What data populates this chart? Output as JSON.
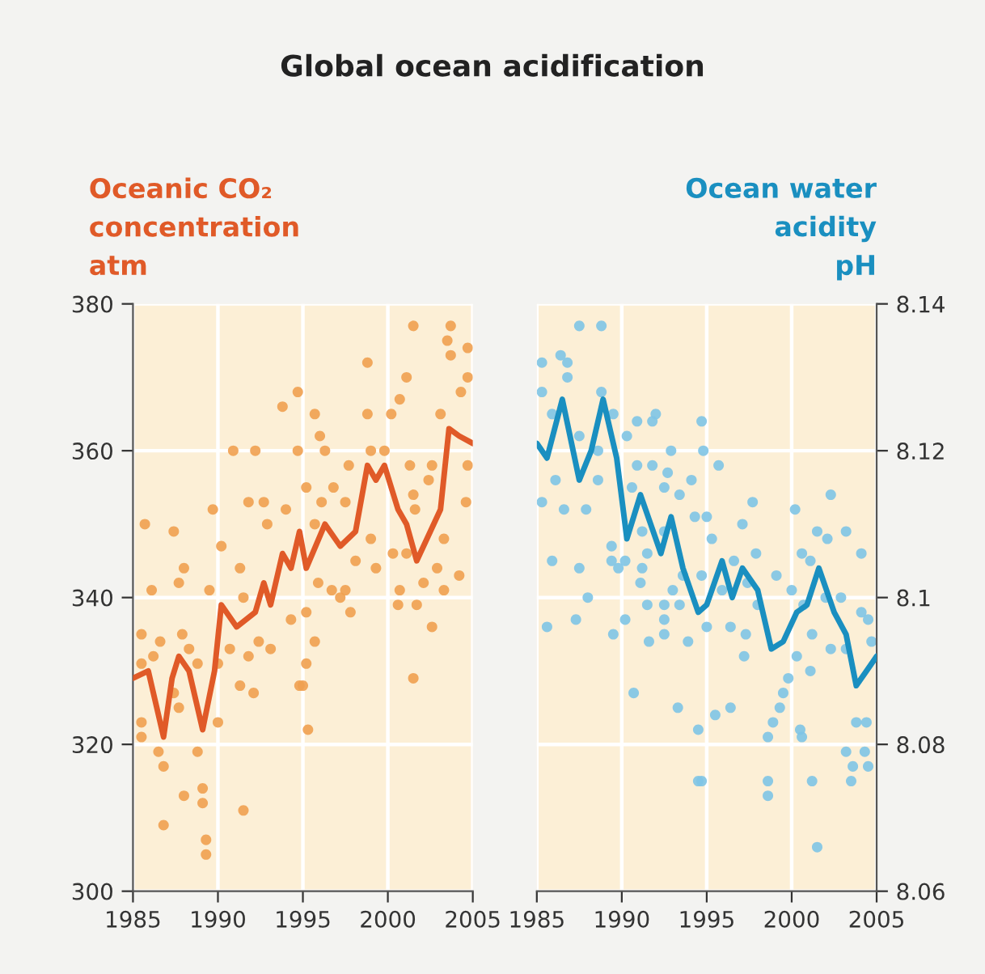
{
  "chart_data": [
    {
      "type": "scatter",
      "title": "Global ocean acidification",
      "ylabel": "Oceanic CO₂\nconcentration\natm",
      "xlim": [
        1985,
        2005
      ],
      "xticks": [
        1985,
        1990,
        1995,
        2000,
        2005
      ],
      "ylim": [
        300,
        380
      ],
      "yticks": [
        300,
        320,
        340,
        360,
        380
      ],
      "grid": true,
      "series": [
        {
          "type": "scatter",
          "marker": "circle",
          "color": "#f0a050",
          "x": [
            1994.7,
            1993.8,
            1990.9,
            1992.2,
            1994.7,
            1989.7,
            1985.7,
            1987.4,
            1991.8,
            1992.7,
            1992.9,
            1994.0,
            1990.2,
            1988.0,
            1991.3,
            1987.7,
            1986.1,
            1989.5,
            1991.5,
            1994.3,
            1985.5,
            1986.6,
            1987.9,
            1988.3,
            1990.7,
            1992.4,
            1993.1,
            1985.5,
            1986.2,
            1988.8,
            1990.0,
            1991.8,
            1987.4,
            1987.7,
            1991.3,
            1992.1,
            1990.0,
            1985.5,
            1985.5,
            1988.8,
            1986.5,
            1986.8,
            1989.1,
            1989.1,
            1988.0,
            1991.5,
            1986.8,
            1989.3,
            1989.3,
            1994.8,
            2001.5,
            2003.7,
            2003.5,
            2004.7,
            2003.7,
            1998.8,
            2001.1,
            2004.7,
            2000.7,
            2004.3,
            1995.7,
            1998.8,
            2000.2,
            2003.1,
            1996.0,
            1996.3,
            1999.0,
            1999.8,
            2001.3,
            2004.7,
            1997.7,
            2002.6,
            1995.2,
            1996.8,
            2001.5,
            2002.4,
            1996.1,
            1997.5,
            2004.6,
            2001.6,
            1995.7,
            1999.0,
            2003.3,
            2000.3,
            2001.1,
            1998.1,
            1999.3,
            2002.9,
            2004.2,
            1995.9,
            1996.7,
            2002.1,
            1997.5,
            2000.7,
            2003.3,
            1997.2,
            1995.2,
            2000.6,
            2001.7,
            1997.8,
            2002.6,
            1995.7,
            1995.2,
            1995.0,
            2001.5,
            1995.3
          ],
          "values": [
            368,
            366,
            360,
            360,
            360,
            352,
            350,
            349,
            353,
            353,
            350,
            352,
            347,
            344,
            344,
            342,
            341,
            341,
            340,
            337,
            335,
            334,
            335,
            333,
            333,
            334,
            333,
            331,
            332,
            331,
            331,
            332,
            327,
            325,
            328,
            327,
            323,
            323,
            321,
            319,
            319,
            317,
            314,
            312,
            313,
            311,
            309,
            307,
            305,
            328,
            377,
            377,
            375,
            374,
            373,
            372,
            370,
            370,
            367,
            368,
            365,
            365,
            365,
            365,
            362,
            360,
            360,
            360,
            358,
            358,
            358,
            358,
            355,
            355,
            354,
            356,
            353,
            353,
            353,
            352,
            350,
            348,
            348,
            346,
            346,
            345,
            344,
            344,
            343,
            342,
            341,
            342,
            341,
            341,
            341,
            340,
            338,
            339,
            339,
            338,
            336,
            334,
            331,
            328,
            329,
            322
          ]
        },
        {
          "type": "line",
          "color": "#e05a28",
          "x": [
            1985.0,
            1985.9,
            1986.8,
            1987.3,
            1987.7,
            1988.3,
            1989.1,
            1989.8,
            1990.2,
            1991.1,
            1992.2,
            1992.7,
            1993.1,
            1993.8,
            1994.3,
            1994.8,
            1995.2,
            1996.3,
            1997.2,
            1998.1,
            1998.8,
            1999.3,
            1999.8,
            2000.6,
            2001.1,
            2001.7,
            2002.5,
            2003.1,
            2003.6,
            2004.2,
            2005.0
          ],
          "values": [
            329,
            330,
            321,
            329,
            332,
            330,
            322,
            330,
            339,
            336,
            338,
            342,
            339,
            346,
            344,
            349,
            344,
            350,
            347,
            349,
            358,
            356,
            358,
            352,
            350,
            345,
            349,
            352,
            363,
            362,
            361
          ]
        }
      ]
    },
    {
      "type": "scatter",
      "ylabel": "Ocean water\nacidity\npH",
      "xlim": [
        1985,
        2005
      ],
      "xticks": [
        1985,
        1990,
        1995,
        2000,
        2005
      ],
      "ylim": [
        8.06,
        8.14
      ],
      "yticks": [
        8.06,
        8.08,
        8.1,
        8.12,
        8.14
      ],
      "grid": true,
      "series": [
        {
          "type": "scatter",
          "marker": "circle",
          "color": "#7ec4e6",
          "x": [
            1987.5,
            1988.8,
            1985.3,
            1986.4,
            1986.8,
            1986.8,
            1985.3,
            1988.8,
            1985.9,
            1989.5,
            1990.9,
            1992.0,
            1991.8,
            1990.3,
            1987.5,
            1992.9,
            1988.6,
            1990.9,
            1991.8,
            1992.7,
            1994.1,
            1986.1,
            1988.6,
            1990.6,
            1992.5,
            1985.3,
            1986.6,
            1987.9,
            1993.4,
            1991.2,
            1992.5,
            1994.3,
            1989.4,
            1985.9,
            1989.4,
            1990.2,
            1991.5,
            1987.5,
            1989.8,
            1991.2,
            1991.1,
            1993.6,
            1988.0,
            1993.0,
            1991.5,
            1992.5,
            1993.4,
            1987.3,
            1990.2,
            1985.6,
            1992.5,
            1989.5,
            1991.6,
            1992.5,
            1993.9,
            1990.7,
            1993.3,
            1994.5,
            1994.5,
            1994.7,
            1994.8,
            1995.7,
            1997.7,
            1997.1,
            2000.2,
            2002.3,
            2001.5,
            2002.1,
            2003.2,
            1995.0,
            1995.3,
            1996.6,
            1997.9,
            1999.1,
            2000.0,
            2000.6,
            2001.1,
            2004.1,
            1994.7,
            1995.9,
            1997.4,
            1998.0,
            2000.7,
            2002.0,
            2002.9,
            2004.1,
            2004.5,
            1995.0,
            1996.4,
            1997.3,
            2001.2,
            2002.3,
            2003.2,
            2004.7,
            1997.2,
            2000.3,
            2001.1,
            1999.8,
            1999.5,
            1996.4,
            1999.3,
            1995.5,
            1998.9,
            1998.6,
            2003.8,
            2004.4,
            2000.5,
            2000.6,
            2003.2,
            2004.3,
            2003.6,
            2004.5,
            1994.7,
            1998.6,
            1998.6,
            2001.2,
            2003.5,
            2001.5
          ],
          "values": [
            8.137,
            8.137,
            8.132,
            8.133,
            8.132,
            8.13,
            8.128,
            8.128,
            8.125,
            8.125,
            8.124,
            8.125,
            8.124,
            8.122,
            8.122,
            8.12,
            8.12,
            8.118,
            8.118,
            8.117,
            8.116,
            8.116,
            8.116,
            8.115,
            8.115,
            8.113,
            8.112,
            8.112,
            8.114,
            8.109,
            8.109,
            8.111,
            8.107,
            8.105,
            8.105,
            8.105,
            8.106,
            8.104,
            8.104,
            8.104,
            8.102,
            8.103,
            8.1,
            8.101,
            8.099,
            8.099,
            8.099,
            8.097,
            8.097,
            8.096,
            8.097,
            8.095,
            8.094,
            8.095,
            8.094,
            8.087,
            8.085,
            8.082,
            8.075,
            8.124,
            8.12,
            8.118,
            8.113,
            8.11,
            8.112,
            8.114,
            8.109,
            8.108,
            8.109,
            8.111,
            8.108,
            8.105,
            8.106,
            8.103,
            8.101,
            8.106,
            8.105,
            8.106,
            8.103,
            8.101,
            8.102,
            8.099,
            8.099,
            8.1,
            8.1,
            8.098,
            8.097,
            8.096,
            8.096,
            8.095,
            8.095,
            8.093,
            8.093,
            8.094,
            8.092,
            8.092,
            8.09,
            8.089,
            8.087,
            8.085,
            8.085,
            8.084,
            8.083,
            8.081,
            8.083,
            8.083,
            8.082,
            8.081,
            8.079,
            8.079,
            8.077,
            8.077,
            8.075,
            8.075,
            8.073,
            8.075,
            8.075,
            8.066
          ]
        },
        {
          "type": "line",
          "color": "#1a8fc0",
          "x": [
            1985.0,
            1985.6,
            1986.5,
            1987.5,
            1988.2,
            1988.9,
            1989.7,
            1990.3,
            1991.1,
            1992.3,
            1992.9,
            1993.6,
            1994.5,
            1995.0,
            1995.9,
            1996.5,
            1997.1,
            1998.0,
            1998.8,
            1999.5,
            2000.3,
            2000.9,
            2001.6,
            2002.5,
            2003.2,
            2003.8,
            2004.4,
            2005.0
          ],
          "values": [
            8.121,
            8.119,
            8.127,
            8.116,
            8.12,
            8.127,
            8.119,
            8.108,
            8.114,
            8.106,
            8.111,
            8.104,
            8.098,
            8.099,
            8.105,
            8.1,
            8.104,
            8.101,
            8.093,
            8.094,
            8.098,
            8.099,
            8.104,
            8.098,
            8.095,
            8.088,
            8.09,
            8.092
          ]
        }
      ]
    }
  ]
}
